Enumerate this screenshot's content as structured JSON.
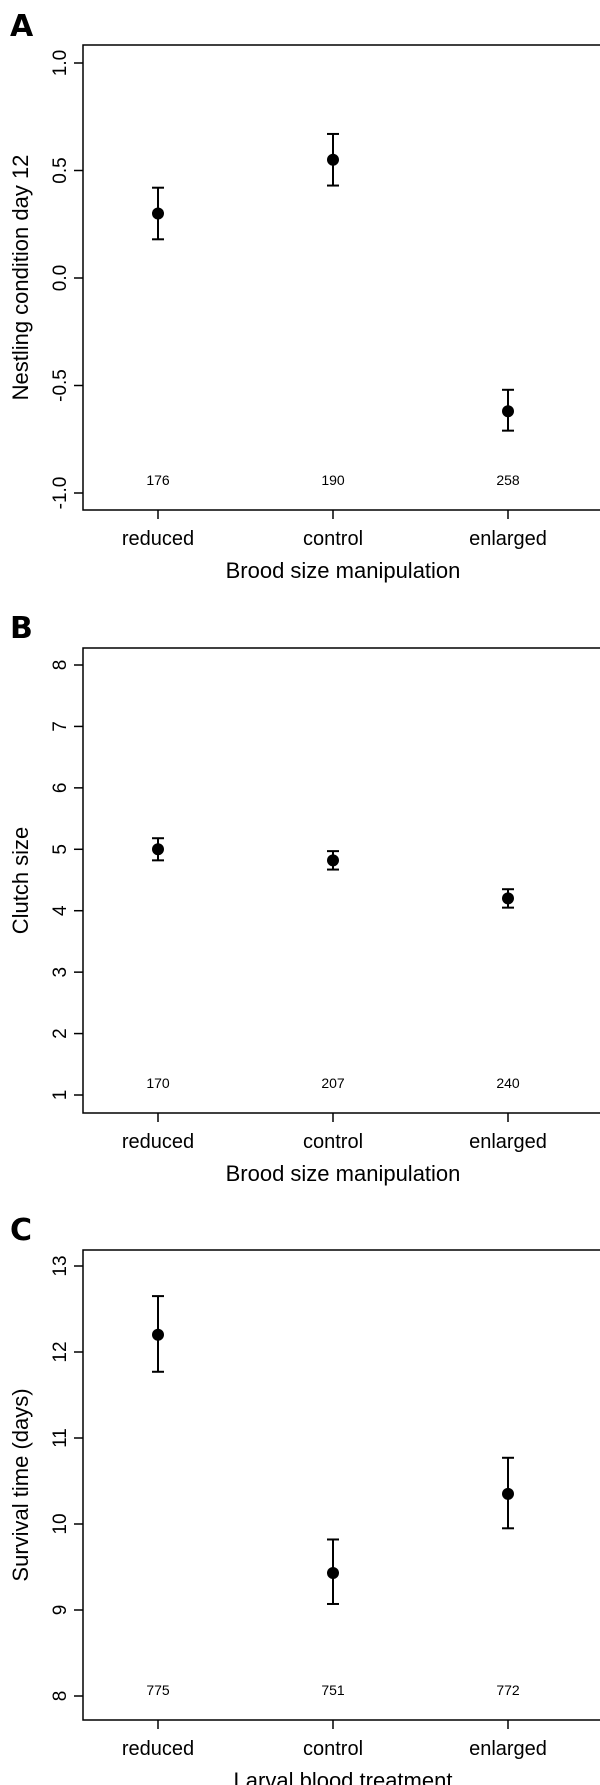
{
  "chart_data": [
    {
      "type": "scatter",
      "panel": "A",
      "xlabel": "Brood size manipulation",
      "ylabel": "Nestling condition day 12",
      "ylim": [
        -1.0,
        1.0
      ],
      "yticks": [
        "-1.0",
        "-0.5",
        "0.0",
        "0.5",
        "1.0"
      ],
      "categories": [
        "reduced",
        "control",
        "enlarged"
      ],
      "values": [
        0.3,
        0.55,
        -0.62
      ],
      "error_low": [
        0.18,
        0.43,
        -0.71
      ],
      "error_high": [
        0.42,
        0.67,
        -0.52
      ],
      "n": [
        "176",
        "190",
        "258"
      ]
    },
    {
      "type": "scatter",
      "panel": "B",
      "xlabel": "Brood size manipulation",
      "ylabel": "Clutch size",
      "ylim": [
        1,
        8
      ],
      "yticks": [
        "1",
        "2",
        "3",
        "4",
        "5",
        "6",
        "7",
        "8"
      ],
      "categories": [
        "reduced",
        "control",
        "enlarged"
      ],
      "values": [
        5.0,
        4.82,
        4.2
      ],
      "error_low": [
        4.82,
        4.67,
        4.05
      ],
      "error_high": [
        5.18,
        4.97,
        4.35
      ],
      "n": [
        "170",
        "207",
        "240"
      ]
    },
    {
      "type": "scatter",
      "panel": "C",
      "xlabel": "Larval blood treatment",
      "ylabel": "Survival time (days)",
      "ylim": [
        8,
        13
      ],
      "yticks": [
        "8",
        "9",
        "10",
        "11",
        "12",
        "13"
      ],
      "categories": [
        "reduced",
        "control",
        "enlarged"
      ],
      "values": [
        12.2,
        9.43,
        10.35
      ],
      "error_low": [
        11.77,
        9.07,
        9.95
      ],
      "error_high": [
        12.65,
        9.82,
        10.77
      ],
      "n": [
        "775",
        "751",
        "772"
      ]
    }
  ]
}
